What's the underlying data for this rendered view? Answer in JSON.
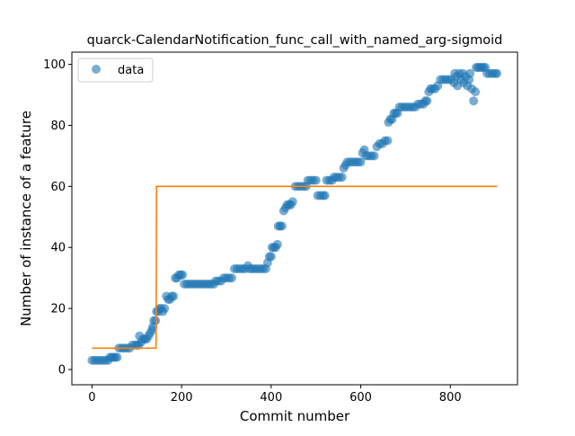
{
  "chart_data": {
    "type": "scatter",
    "title": "quarck-CalendarNotification_func_call_with_named_arg-sigmoid",
    "xlabel": "Commit number",
    "ylabel": "Number of instance of a feature",
    "xlim": [
      -45,
      950
    ],
    "ylim": [
      -5,
      104
    ],
    "xticks": [
      0,
      200,
      400,
      600,
      800
    ],
    "yticks": [
      0,
      20,
      40,
      60,
      80,
      100
    ],
    "grid": false,
    "legend": {
      "placement": "top-left",
      "entries": [
        "data"
      ]
    },
    "colors": {
      "data": "#1f77b4",
      "fit": "#ff7f0e"
    },
    "series": [
      {
        "name": "data",
        "kind": "scatter",
        "points": [
          [
            0,
            3
          ],
          [
            6,
            3
          ],
          [
            12,
            3
          ],
          [
            18,
            3
          ],
          [
            24,
            3
          ],
          [
            30,
            3
          ],
          [
            36,
            3
          ],
          [
            40,
            4
          ],
          [
            44,
            4
          ],
          [
            48,
            4
          ],
          [
            52,
            4
          ],
          [
            56,
            4
          ],
          [
            60,
            7
          ],
          [
            66,
            7
          ],
          [
            72,
            7
          ],
          [
            78,
            7
          ],
          [
            84,
            7
          ],
          [
            90,
            8
          ],
          [
            96,
            8
          ],
          [
            100,
            8
          ],
          [
            104,
            8
          ],
          [
            106,
            11
          ],
          [
            110,
            9
          ],
          [
            114,
            10
          ],
          [
            118,
            10
          ],
          [
            122,
            10
          ],
          [
            126,
            11
          ],
          [
            130,
            12
          ],
          [
            134,
            13
          ],
          [
            136,
            14
          ],
          [
            138,
            16
          ],
          [
            142,
            16
          ],
          [
            144,
            19
          ],
          [
            148,
            19
          ],
          [
            150,
            20
          ],
          [
            154,
            20
          ],
          [
            158,
            19
          ],
          [
            162,
            20
          ],
          [
            166,
            24
          ],
          [
            170,
            23
          ],
          [
            174,
            23
          ],
          [
            178,
            24
          ],
          [
            182,
            24
          ],
          [
            186,
            30
          ],
          [
            190,
            30
          ],
          [
            194,
            31
          ],
          [
            198,
            31
          ],
          [
            202,
            31
          ],
          [
            206,
            28
          ],
          [
            212,
            28
          ],
          [
            218,
            28
          ],
          [
            224,
            28
          ],
          [
            230,
            28
          ],
          [
            236,
            28
          ],
          [
            242,
            28
          ],
          [
            248,
            28
          ],
          [
            254,
            28
          ],
          [
            260,
            28
          ],
          [
            266,
            28
          ],
          [
            272,
            28
          ],
          [
            276,
            29
          ],
          [
            282,
            29
          ],
          [
            288,
            29
          ],
          [
            294,
            30
          ],
          [
            300,
            30
          ],
          [
            306,
            30
          ],
          [
            312,
            30
          ],
          [
            318,
            33
          ],
          [
            324,
            33
          ],
          [
            330,
            33
          ],
          [
            336,
            33
          ],
          [
            342,
            33
          ],
          [
            348,
            34
          ],
          [
            352,
            33
          ],
          [
            358,
            33
          ],
          [
            364,
            33
          ],
          [
            370,
            33
          ],
          [
            376,
            33
          ],
          [
            382,
            33
          ],
          [
            388,
            33
          ],
          [
            392,
            35
          ],
          [
            396,
            37
          ],
          [
            400,
            37
          ],
          [
            402,
            40
          ],
          [
            406,
            40
          ],
          [
            410,
            40
          ],
          [
            414,
            41
          ],
          [
            416,
            47
          ],
          [
            420,
            47
          ],
          [
            424,
            47
          ],
          [
            428,
            52
          ],
          [
            432,
            53
          ],
          [
            436,
            54
          ],
          [
            440,
            54
          ],
          [
            444,
            54
          ],
          [
            448,
            55
          ],
          [
            454,
            60
          ],
          [
            460,
            60
          ],
          [
            466,
            60
          ],
          [
            472,
            60
          ],
          [
            478,
            60
          ],
          [
            482,
            62
          ],
          [
            488,
            62
          ],
          [
            494,
            62
          ],
          [
            500,
            62
          ],
          [
            504,
            57
          ],
          [
            510,
            57
          ],
          [
            516,
            57
          ],
          [
            520,
            57
          ],
          [
            524,
            62
          ],
          [
            530,
            62
          ],
          [
            536,
            62
          ],
          [
            540,
            63
          ],
          [
            546,
            63
          ],
          [
            552,
            63
          ],
          [
            558,
            63
          ],
          [
            562,
            66
          ],
          [
            566,
            67
          ],
          [
            570,
            68
          ],
          [
            576,
            68
          ],
          [
            582,
            68
          ],
          [
            588,
            68
          ],
          [
            594,
            68
          ],
          [
            600,
            68
          ],
          [
            604,
            71
          ],
          [
            608,
            72
          ],
          [
            612,
            70
          ],
          [
            618,
            70
          ],
          [
            624,
            70
          ],
          [
            630,
            70
          ],
          [
            636,
            73
          ],
          [
            642,
            74
          ],
          [
            648,
            74
          ],
          [
            654,
            75
          ],
          [
            660,
            75
          ],
          [
            662,
            81
          ],
          [
            666,
            82
          ],
          [
            670,
            82
          ],
          [
            674,
            84
          ],
          [
            678,
            84
          ],
          [
            682,
            84
          ],
          [
            686,
            86
          ],
          [
            692,
            86
          ],
          [
            698,
            86
          ],
          [
            704,
            86
          ],
          [
            710,
            86
          ],
          [
            716,
            86
          ],
          [
            722,
            86
          ],
          [
            728,
            87
          ],
          [
            734,
            87
          ],
          [
            740,
            87
          ],
          [
            744,
            88
          ],
          [
            748,
            88
          ],
          [
            752,
            91
          ],
          [
            756,
            92
          ],
          [
            760,
            92
          ],
          [
            766,
            92
          ],
          [
            772,
            93
          ],
          [
            778,
            95
          ],
          [
            784,
            95
          ],
          [
            790,
            95
          ],
          [
            796,
            95
          ],
          [
            802,
            95
          ],
          [
            808,
            94
          ],
          [
            810,
            97
          ],
          [
            814,
            96
          ],
          [
            816,
            93
          ],
          [
            820,
            97
          ],
          [
            824,
            95
          ],
          [
            828,
            97
          ],
          [
            830,
            94
          ],
          [
            834,
            96
          ],
          [
            838,
            93
          ],
          [
            842,
            95
          ],
          [
            844,
            97
          ],
          [
            848,
            92
          ],
          [
            852,
            88
          ],
          [
            856,
            91
          ],
          [
            858,
            99
          ],
          [
            862,
            99
          ],
          [
            866,
            99
          ],
          [
            870,
            99
          ],
          [
            874,
            99
          ],
          [
            878,
            99
          ],
          [
            882,
            97
          ],
          [
            888,
            97
          ],
          [
            894,
            97
          ],
          [
            900,
            97
          ],
          [
            904,
            97
          ]
        ]
      },
      {
        "name": "",
        "kind": "line",
        "points": [
          [
            0,
            7
          ],
          [
            143,
            7
          ],
          [
            144,
            60
          ],
          [
            905,
            60
          ]
        ]
      }
    ]
  }
}
